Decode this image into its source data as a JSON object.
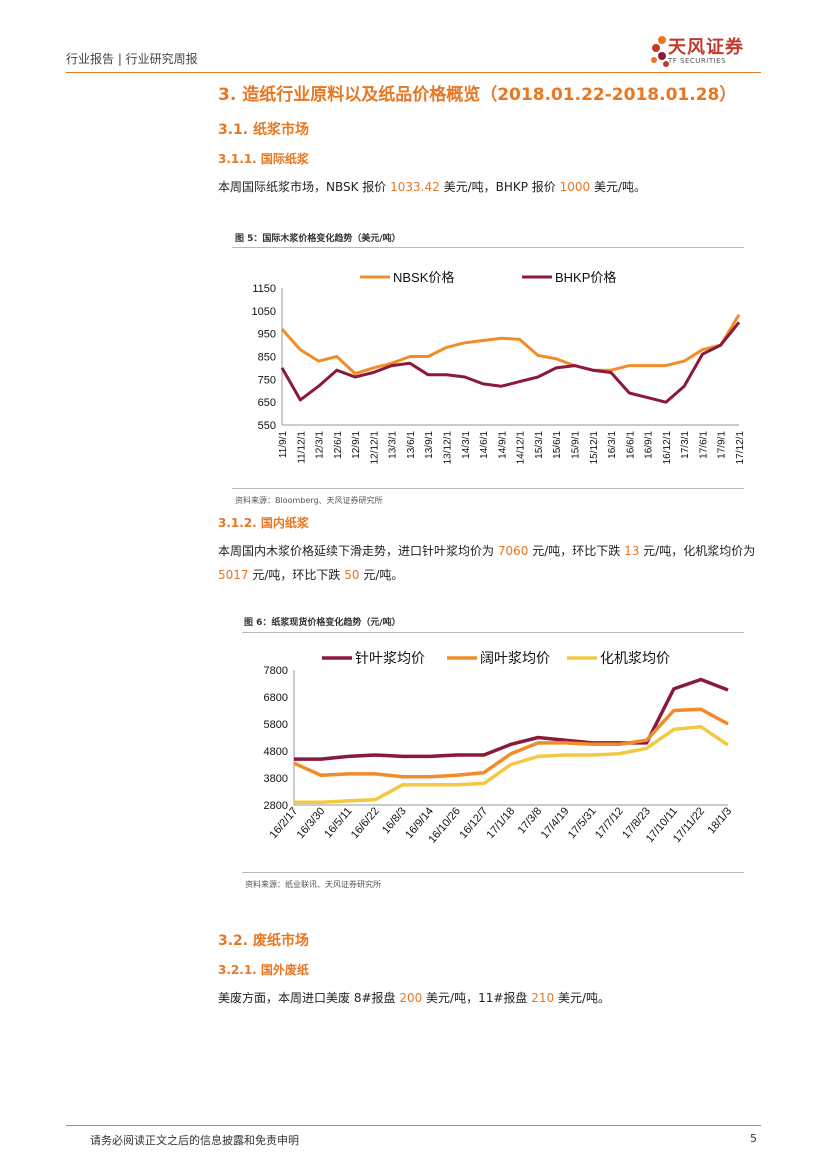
{
  "header": {
    "breadcrumb": "行业报告 | 行业研究周报",
    "logo_name": "天风证券",
    "logo_sub": "TF SECURITIES"
  },
  "section": {
    "title": "3. 造纸行业原料以及纸品价格概览（2018.01.22-2018.01.28）",
    "s31": "3.1. 纸浆市场",
    "s311": "3.1.1. 国际纸浆",
    "p311": {
      "a": "本周国际纸浆市场，NBSK 报价 ",
      "v1": "1033.42",
      "b": " 美元/吨，BHKP 报价 ",
      "v2": "1000",
      "c": " 美元/吨。"
    },
    "s312": "3.1.2. 国内纸浆",
    "p312": {
      "a": "本周国内木浆价格延续下滑走势，进口针叶浆均价为 ",
      "v1": "7060",
      "b": " 元/吨，环比下跌 ",
      "v2": "13",
      "c": " 元/吨，化机浆均价为 ",
      "v3": "5017",
      "d": " 元/吨，环比下跌 ",
      "v4": "50",
      "e": " 元/吨。"
    },
    "s32": "3.2. 废纸市场",
    "s321": "3.2.1. 国外废纸",
    "p321": {
      "a": "美废方面，本周进口美废 8#报盘 ",
      "v1": "200",
      "b": " 美元/吨，11#报盘 ",
      "v2": "210",
      "c": " 美元/吨。"
    }
  },
  "fig5": {
    "title": "图 5：国际木浆价格变化趋势（美元/吨）",
    "source": "资料来源：Bloomberg、天风证券研究所"
  },
  "fig6": {
    "title": "图 6：纸浆现货价格变化趋势（元/吨）",
    "source": "资料来源：纸业联讯、天风证券研究所"
  },
  "footer": {
    "disclaimer": "请务必阅读正文之后的信息披露和免责申明",
    "page": "5"
  },
  "chart_data": [
    {
      "type": "line",
      "title": "",
      "ylim": [
        550,
        1150
      ],
      "yticks": [
        550,
        650,
        750,
        850,
        950,
        1050,
        1150
      ],
      "categories": [
        "11/9/1",
        "11/12/1",
        "12/3/1",
        "12/6/1",
        "12/9/1",
        "12/12/1",
        "13/3/1",
        "13/6/1",
        "13/9/1",
        "13/12/1",
        "14/3/1",
        "14/6/1",
        "14/9/1",
        "14/12/1",
        "15/3/1",
        "15/6/1",
        "15/9/1",
        "15/12/1",
        "16/3/1",
        "16/6/1",
        "16/9/1",
        "16/12/1",
        "17/3/1",
        "17/6/1",
        "17/9/1",
        "17/12/1"
      ],
      "series": [
        {
          "name": "NBSK价格",
          "color": "#f28c28",
          "values": [
            970,
            880,
            830,
            850,
            775,
            800,
            820,
            850,
            850,
            890,
            910,
            920,
            930,
            925,
            855,
            840,
            810,
            790,
            790,
            810,
            810,
            810,
            830,
            880,
            900,
            1033
          ]
        },
        {
          "name": "BHKP价格",
          "color": "#8b1a3a",
          "values": [
            800,
            660,
            720,
            790,
            760,
            780,
            810,
            820,
            770,
            770,
            760,
            730,
            720,
            740,
            760,
            800,
            810,
            790,
            780,
            690,
            670,
            650,
            720,
            860,
            900,
            1000
          ]
        }
      ]
    },
    {
      "type": "line",
      "title": "",
      "ylim": [
        2800,
        7800
      ],
      "yticks": [
        2800,
        3800,
        4800,
        5800,
        6800,
        7800
      ],
      "categories": [
        "16/2/17",
        "16/3/30",
        "16/5/11",
        "16/6/22",
        "16/8/3",
        "16/9/14",
        "16/10/26",
        "16/12/7",
        "17/1/18",
        "17/3/8",
        "17/4/19",
        "17/5/31",
        "17/7/12",
        "17/8/23",
        "17/10/11",
        "17/11/22",
        "18/1/3"
      ],
      "series": [
        {
          "name": "针叶浆均价",
          "color": "#8b1a3a",
          "values": [
            4500,
            4500,
            4600,
            4650,
            4600,
            4600,
            4650,
            4650,
            5050,
            5300,
            5200,
            5100,
            5100,
            5100,
            7100,
            7450,
            7060
          ]
        },
        {
          "name": "阔叶浆均价",
          "color": "#f28c28",
          "values": [
            4350,
            3900,
            3950,
            3950,
            3850,
            3850,
            3900,
            4000,
            4700,
            5100,
            5100,
            5050,
            5050,
            5200,
            6300,
            6350,
            5800
          ]
        },
        {
          "name": "化机浆均价",
          "color": "#f5c842",
          "values": [
            2900,
            2900,
            2950,
            3000,
            3550,
            3550,
            3550,
            3600,
            4300,
            4600,
            4650,
            4650,
            4700,
            4900,
            5600,
            5700,
            5017
          ]
        }
      ]
    }
  ]
}
